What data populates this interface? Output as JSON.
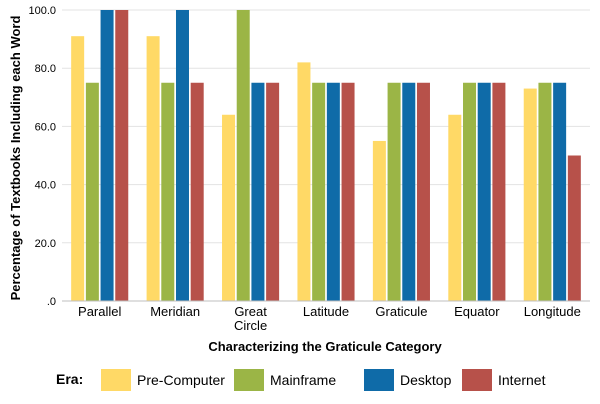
{
  "chart_data": {
    "type": "bar",
    "title": "",
    "xlabel": "Characterizing the Graticule Category",
    "ylabel": "Percentage of Textbooks Including each Word",
    "ylim": [
      0,
      100
    ],
    "yticks": [
      ".0",
      "20.0",
      "40.0",
      "60.0",
      "80.0",
      "100.0"
    ],
    "grid": true,
    "legend_placement": "bottom",
    "legend_title": "Era:",
    "categories": [
      [
        "Parallel"
      ],
      [
        "Meridian"
      ],
      [
        "Great",
        "Circle"
      ],
      [
        "Latitude"
      ],
      [
        "Graticule"
      ],
      [
        "Equator"
      ],
      [
        "Longitude"
      ]
    ],
    "series": [
      {
        "name": "Pre-Computer",
        "color": "#FFD966",
        "values": [
          91,
          91,
          64,
          82,
          55,
          64,
          73
        ]
      },
      {
        "name": "Mainframe",
        "color": "#9BB546",
        "values": [
          75,
          75,
          100,
          75,
          75,
          75,
          75
        ]
      },
      {
        "name": "Desktop",
        "color": "#0F6BA8",
        "values": [
          100,
          100,
          75,
          75,
          75,
          75,
          75
        ]
      },
      {
        "name": "Internet",
        "color": "#B7514A",
        "values": [
          100,
          75,
          75,
          75,
          75,
          75,
          50
        ]
      }
    ]
  }
}
